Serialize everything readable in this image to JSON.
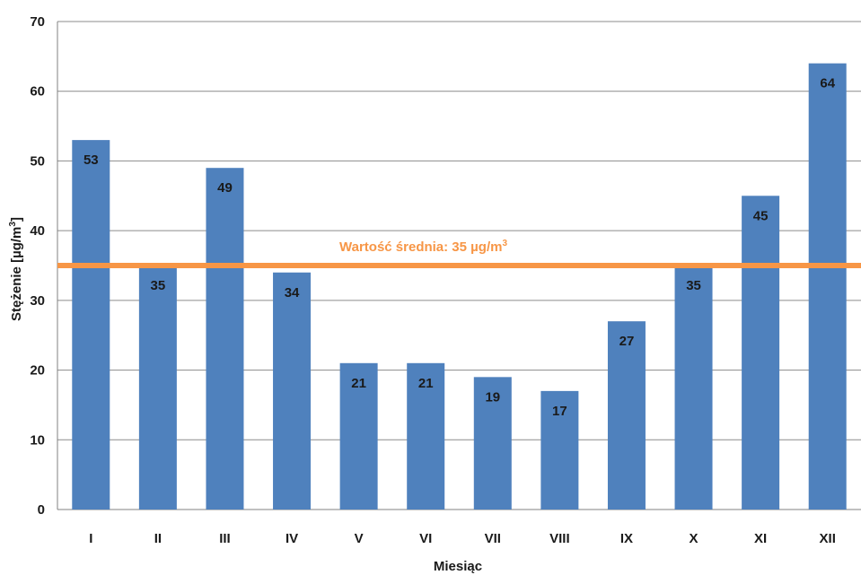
{
  "chart_data": {
    "type": "bar",
    "categories": [
      "I",
      "II",
      "III",
      "IV",
      "V",
      "VI",
      "VII",
      "VIII",
      "IX",
      "X",
      "XI",
      "XII"
    ],
    "series": [
      {
        "values": [
          53,
          35,
          49,
          34,
          21,
          21,
          19,
          17,
          27,
          35,
          45,
          64
        ],
        "color": "#4f81bd"
      }
    ],
    "data_labels": [
      "53",
      "35",
      "49",
      "34",
      "21",
      "21",
      "19",
      "17",
      "27",
      "35",
      "45",
      "64"
    ],
    "y_ticks": [
      "0",
      "10",
      "20",
      "30",
      "40",
      "50",
      "60",
      "70"
    ],
    "ylim": [
      0,
      70
    ],
    "xlabel": "Miesiąc",
    "ylabel_main": "Stężenie [µg/m",
    "ylabel_sup": "3",
    "ylabel_tail": "]",
    "grid": true,
    "reference_line": {
      "value": 35,
      "color": "#f79646",
      "label_main": "Wartość średnia:  35 µg/m",
      "label_sup": "3"
    }
  },
  "colors": {
    "bar": "#4f81bd",
    "grid": "#8c8c8c",
    "text": "#1a1a1a",
    "mean": "#f79646"
  }
}
